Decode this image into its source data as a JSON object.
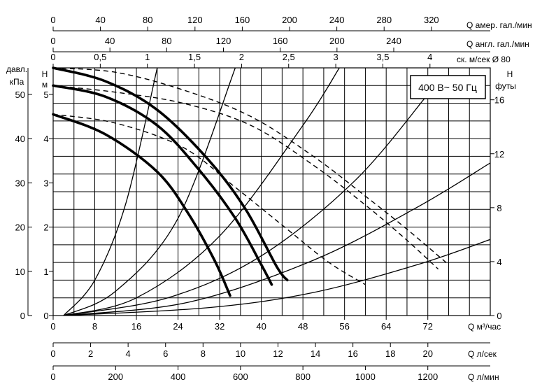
{
  "chart_data": {
    "type": "line",
    "badge": "400 В~ 50 Гц",
    "left_axes": {
      "m": {
        "label": "Н",
        "unit": "м",
        "range": [
          0,
          5.6
        ],
        "ticks": [
          0,
          1,
          2,
          3,
          4,
          5
        ]
      },
      "kpa": {
        "label": "давл.",
        "unit": "кПа",
        "range": [
          0,
          56
        ],
        "ticks": [
          0,
          10,
          20,
          30,
          40,
          50
        ]
      }
    },
    "right_axis": {
      "label": "Н",
      "unit": "футы",
      "range": [
        0,
        18.37
      ],
      "ticks": [
        0,
        4,
        8,
        12,
        16
      ]
    },
    "bottom_axes": [
      {
        "unit_label": "Q  м³/час",
        "range": [
          0,
          84
        ],
        "ticks": [
          0,
          8,
          16,
          24,
          32,
          40,
          48,
          56,
          64,
          72
        ]
      },
      {
        "unit_label": "Q  л/сек",
        "range": [
          0,
          23.33
        ],
        "ticks": [
          0,
          2,
          4,
          6,
          8,
          10,
          12,
          14,
          16,
          18,
          20
        ]
      },
      {
        "unit_label": "Q  л/мин",
        "range": [
          0,
          1400
        ],
        "ticks": [
          0,
          200,
          400,
          600,
          800,
          1000,
          1200
        ]
      }
    ],
    "top_axes": [
      {
        "unit_label": "Q  амер. гал./мин",
        "range": [
          0,
          369.8
        ],
        "ticks": [
          0,
          40,
          80,
          120,
          160,
          200,
          240,
          280,
          320
        ]
      },
      {
        "unit_label": "Q  англ. гал./мин",
        "range": [
          0,
          308
        ],
        "ticks": [
          0,
          40,
          80,
          120,
          160,
          200,
          240
        ]
      },
      {
        "unit_label": "ск. м/сек Ø 80",
        "range": [
          0,
          4.64
        ],
        "ticks": [
          "0",
          "0,5",
          "1",
          "1,5",
          "2",
          "2,5",
          "3",
          "3,5",
          "4"
        ]
      }
    ],
    "pump_curves": [
      {
        "style": "bold",
        "points": [
          [
            0,
            5.6
          ],
          [
            10,
            5.3
          ],
          [
            20,
            4.65
          ],
          [
            30,
            3.5
          ],
          [
            37,
            2.4
          ],
          [
            43,
            1.1
          ],
          [
            45,
            0.8
          ]
        ]
      },
      {
        "style": "bold",
        "points": [
          [
            0,
            5.2
          ],
          [
            10,
            4.95
          ],
          [
            20,
            4.3
          ],
          [
            28,
            3.3
          ],
          [
            35,
            2.2
          ],
          [
            40,
            1.15
          ],
          [
            42,
            0.7
          ]
        ]
      },
      {
        "style": "bold",
        "points": [
          [
            0,
            4.55
          ],
          [
            10,
            4.1
          ],
          [
            20,
            3.25
          ],
          [
            26,
            2.3
          ],
          [
            31,
            1.25
          ],
          [
            34,
            0.45
          ]
        ]
      },
      {
        "style": "dashed",
        "points": [
          [
            0,
            5.6
          ],
          [
            12,
            5.5
          ],
          [
            25,
            5.1
          ],
          [
            38,
            4.5
          ],
          [
            50,
            3.6
          ],
          [
            60,
            2.7
          ],
          [
            68,
            1.95
          ],
          [
            76,
            1.15
          ]
        ]
      },
      {
        "style": "dashed",
        "points": [
          [
            0,
            5.2
          ],
          [
            12,
            5.05
          ],
          [
            25,
            4.8
          ],
          [
            38,
            4.3
          ],
          [
            50,
            3.4
          ],
          [
            60,
            2.5
          ],
          [
            68,
            1.7
          ],
          [
            74,
            1.05
          ]
        ]
      },
      {
        "style": "dashed",
        "points": [
          [
            0,
            4.55
          ],
          [
            12,
            4.35
          ],
          [
            25,
            3.8
          ],
          [
            35,
            2.9
          ],
          [
            45,
            1.95
          ],
          [
            53,
            1.2
          ],
          [
            60,
            0.7
          ]
        ]
      }
    ],
    "system_curves": [
      {
        "points": [
          [
            2,
            0
          ],
          [
            8,
            0.8
          ],
          [
            14,
            2.55
          ],
          [
            20,
            5.6
          ]
        ]
      },
      {
        "points": [
          [
            2,
            0
          ],
          [
            12,
            0.55
          ],
          [
            24,
            2.2
          ],
          [
            35,
            5.6
          ]
        ]
      },
      {
        "points": [
          [
            2,
            0
          ],
          [
            16,
            0.4
          ],
          [
            32,
            1.8
          ],
          [
            48,
            4.3
          ],
          [
            55,
            5.6
          ]
        ]
      },
      {
        "points": [
          [
            2,
            0
          ],
          [
            22,
            0.4
          ],
          [
            40,
            1.35
          ],
          [
            58,
            3.05
          ],
          [
            72,
            5.0
          ],
          [
            74,
            5.3
          ]
        ]
      },
      {
        "points": [
          [
            2,
            0
          ],
          [
            26,
            0.3
          ],
          [
            50,
            1.25
          ],
          [
            70,
            2.45
          ],
          [
            84,
            3.45
          ]
        ]
      },
      {
        "points": [
          [
            2,
            0
          ],
          [
            30,
            0.18
          ],
          [
            50,
            0.52
          ],
          [
            70,
            1.15
          ],
          [
            84,
            1.72
          ]
        ]
      }
    ]
  }
}
